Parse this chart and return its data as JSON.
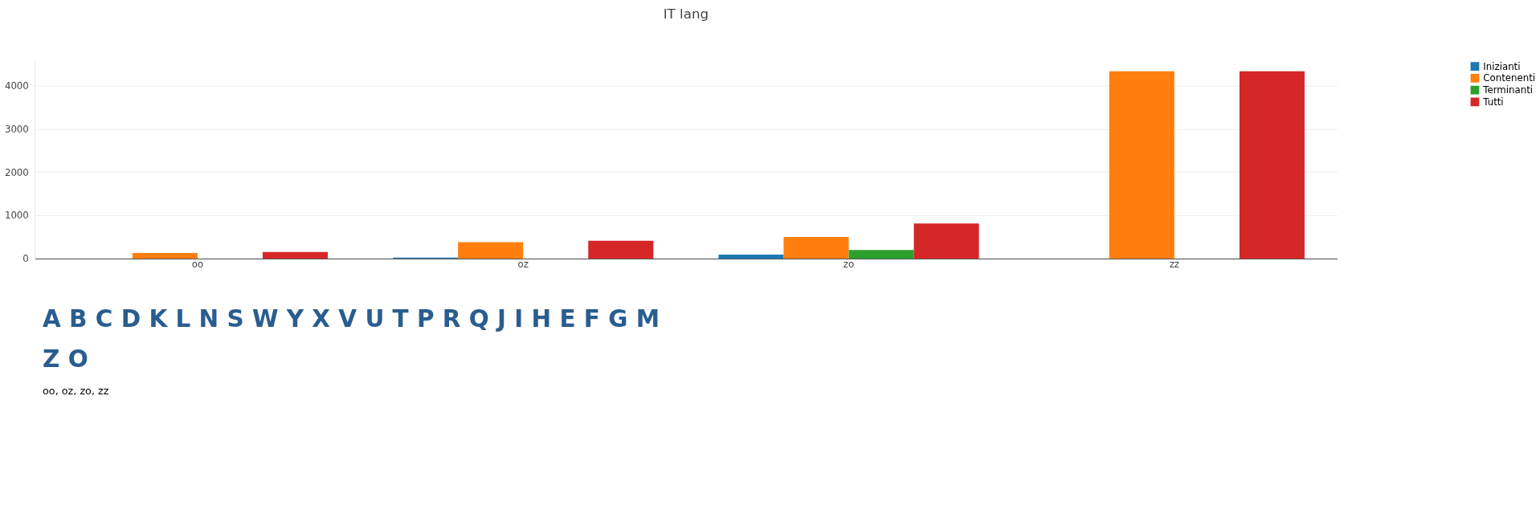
{
  "chart_data": [
    {
      "type": "bar",
      "title": "IT lang",
      "categories": [
        "oo",
        "oz",
        "zo",
        "zz"
      ],
      "series": [
        {
          "name": "Inizianti",
          "color": "#1f77b4",
          "values": [
            0,
            20,
            90,
            0
          ]
        },
        {
          "name": "Contenenti",
          "color": "#ff7f0e",
          "values": [
            130,
            380,
            500,
            4330
          ]
        },
        {
          "name": "Terminanti",
          "color": "#2ca02c",
          "values": [
            0,
            0,
            200,
            0
          ]
        },
        {
          "name": "Tutti",
          "color": "#d62728",
          "values": [
            150,
            410,
            810,
            4330
          ]
        }
      ],
      "ylim": [
        0,
        4560
      ],
      "yticks": [
        0,
        1000,
        2000,
        3000,
        4000
      ],
      "grid": "y",
      "legend": "top right"
    },
    {
      "type": "other",
      "annotations": [
        "A  B  C  D  K  L  N  S  W  Y  X  V  U  T  P  R  Q  J  I  H  E  F  G  M",
        "Z  O",
        "oo, oz, zo, zz"
      ]
    }
  ]
}
